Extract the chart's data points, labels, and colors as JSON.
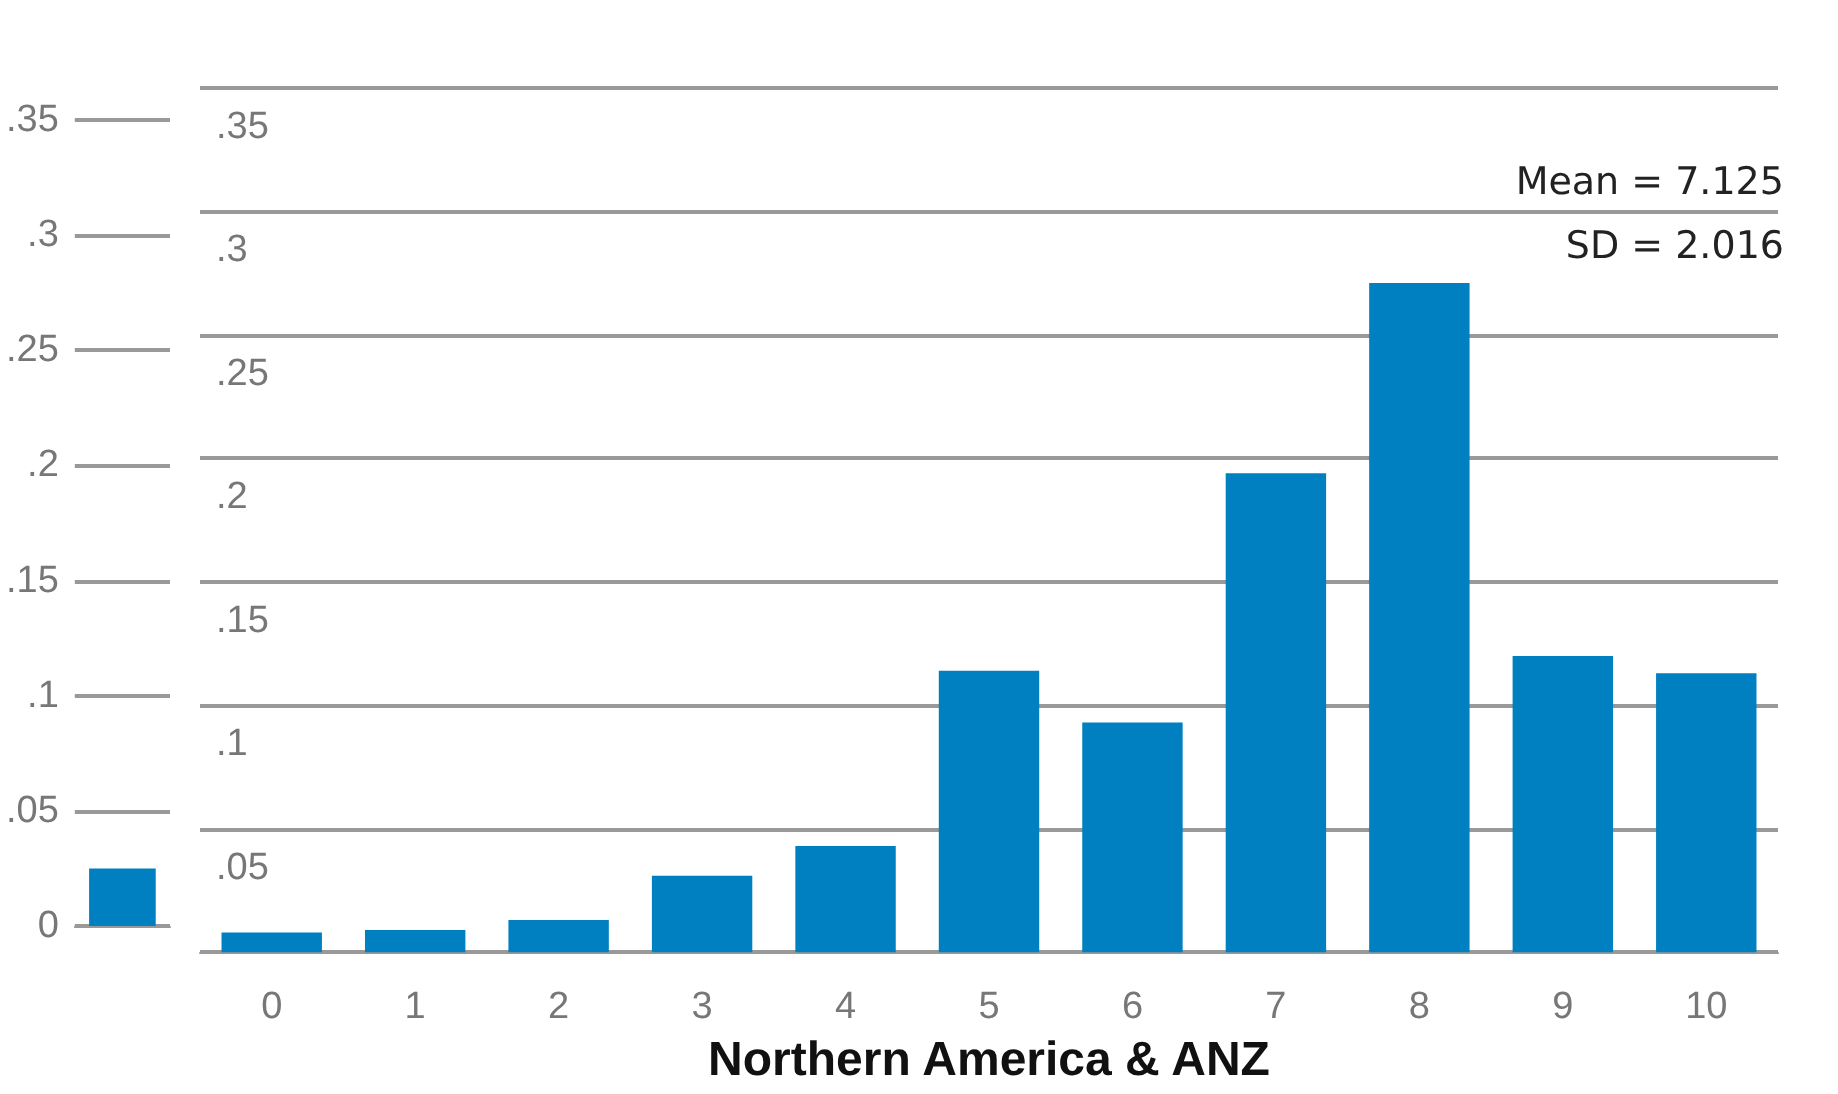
{
  "chart_data": [
    {
      "type": "bar",
      "categories": [
        null
      ],
      "values": [
        0.025
      ],
      "color": "#0080c0",
      "ylim": [
        0,
        0.35
      ],
      "yticks": [
        {
          "value": 0,
          "label": "0"
        },
        {
          "value": 0.05,
          "label": ".05"
        },
        {
          "value": 0.1,
          "label": ".1"
        },
        {
          "value": 0.15,
          "label": ".15"
        },
        {
          "value": 0.2,
          "label": ".2"
        },
        {
          "value": 0.25,
          "label": ".25"
        },
        {
          "value": 0.3,
          "label": ".3"
        },
        {
          "value": 0.35,
          "label": ".35"
        }
      ],
      "grid": "y",
      "tick_labels": "y"
    },
    {
      "type": "bar",
      "xlabel": "Northern America & ANZ",
      "categories": [
        "0",
        "1",
        "2",
        "3",
        "4",
        "5",
        "6",
        "7",
        "8",
        "9",
        "10"
      ],
      "values": [
        0.008,
        0.009,
        0.013,
        0.031,
        0.043,
        0.114,
        0.093,
        0.194,
        0.271,
        0.12,
        0.113
      ],
      "color": "#0080c0",
      "ylim": [
        0,
        0.35
      ],
      "yticks": [
        {
          "value": 0,
          "label": null
        },
        {
          "value": 0.05,
          "label": ".05"
        },
        {
          "value": 0.1,
          "label": ".1"
        },
        {
          "value": 0.15,
          "label": ".15"
        },
        {
          "value": 0.2,
          "label": ".2"
        },
        {
          "value": 0.25,
          "label": ".25"
        },
        {
          "value": 0.3,
          "label": ".3"
        },
        {
          "value": 0.35,
          "label": ".35"
        }
      ],
      "grid": "y",
      "annotations": [
        "Mean = 7.125",
        "SD = 2.016"
      ]
    }
  ]
}
